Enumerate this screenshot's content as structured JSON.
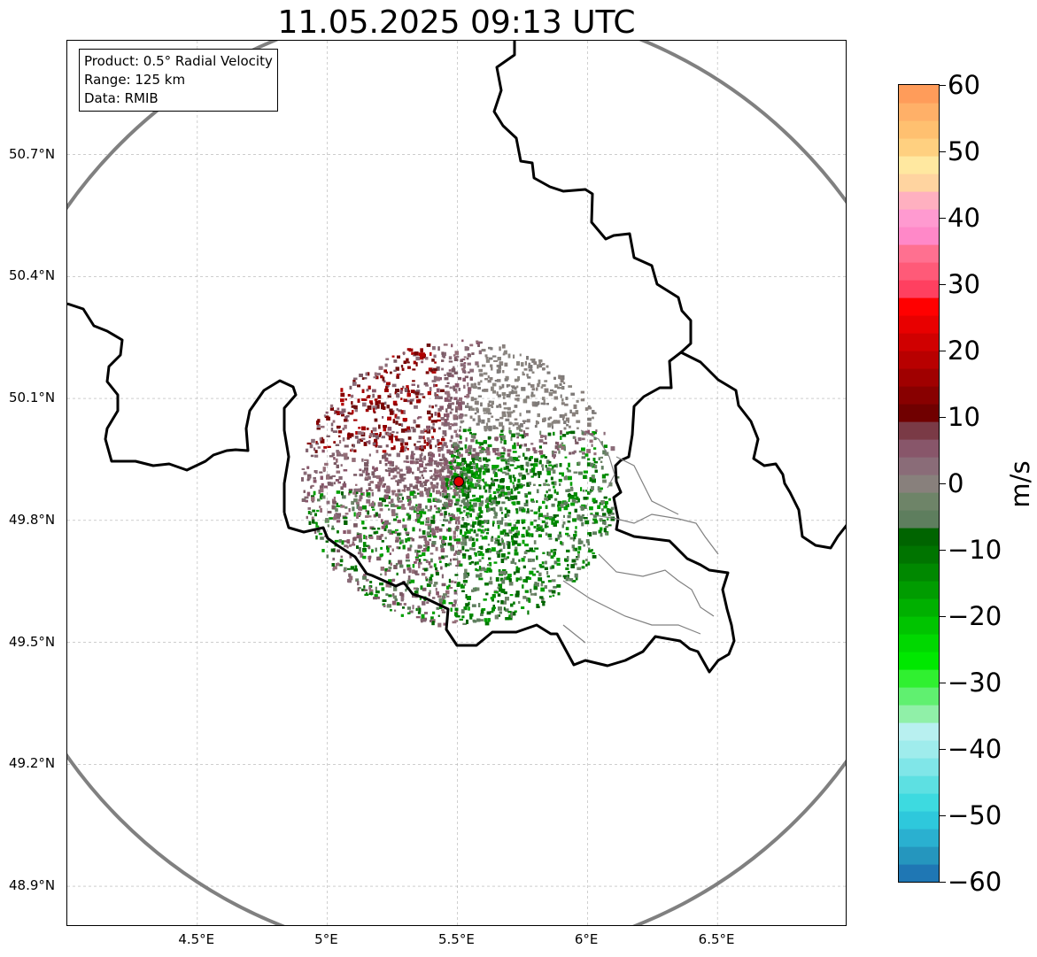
{
  "title": "11.05.2025 09:13 UTC",
  "info": {
    "product": "Product: 0.5° Radial Velocity",
    "range": "Range: 125 km",
    "data": "Data: RMIB"
  },
  "map": {
    "extent": {
      "lon_min": 4.0,
      "lon_max": 7.0,
      "lat_min": 48.8,
      "lat_max": 50.98
    },
    "lat_ticks": [
      50.7,
      50.4,
      50.1,
      49.8,
      49.5,
      49.2,
      48.9
    ],
    "lat_tick_labels": [
      "50.7°N",
      "50.4°N",
      "50.1°N",
      "49.8°N",
      "49.5°N",
      "49.2°N",
      "48.9°N"
    ],
    "lon_ticks": [
      4.5,
      5.0,
      5.5,
      6.0,
      6.5
    ],
    "lon_tick_labels": [
      "4.5°E",
      "5°E",
      "5.5°E",
      "6°E",
      "6.5°E"
    ],
    "radar_site": {
      "lon": 5.505,
      "lat": 49.915
    },
    "range_ring_color": "#808080",
    "radar_marker_color": "#e00000",
    "gridlines": true
  },
  "colorbar": {
    "min": -60,
    "max": 60,
    "ticks": [
      60,
      50,
      40,
      30,
      20,
      10,
      0,
      -10,
      -20,
      -30,
      -40,
      -50,
      -60
    ],
    "tick_labels": [
      "60",
      "50",
      "40",
      "30",
      "20",
      "10",
      "0",
      "−10",
      "−20",
      "−30",
      "−40",
      "−50",
      "−60"
    ],
    "unit": "m/s",
    "colors": [
      "#1f77b4",
      "#2596be",
      "#2ab0d0",
      "#2ec8dc",
      "#3ddae0",
      "#5de0e2",
      "#80e6e8",
      "#9fecec",
      "#b8f0f0",
      "#90f0a8",
      "#60f070",
      "#30f030",
      "#00e800",
      "#00d800",
      "#00c400",
      "#00b000",
      "#009c00",
      "#008800",
      "#007400",
      "#006400",
      "#5e7e5e",
      "#6e8468",
      "#88807c",
      "#8a6c78",
      "#88566a",
      "#7a3a46",
      "#700000",
      "#880000",
      "#a00000",
      "#b80000",
      "#d00000",
      "#e80000",
      "#ff0000",
      "#ff4060",
      "#ff5a78",
      "#ff7090",
      "#ff88c8",
      "#ff9ad0",
      "#ffb0c0",
      "#ffd4a0",
      "#ffe8a0",
      "#ffd080",
      "#ffc070",
      "#ffb068",
      "#ff9c5a"
    ]
  }
}
